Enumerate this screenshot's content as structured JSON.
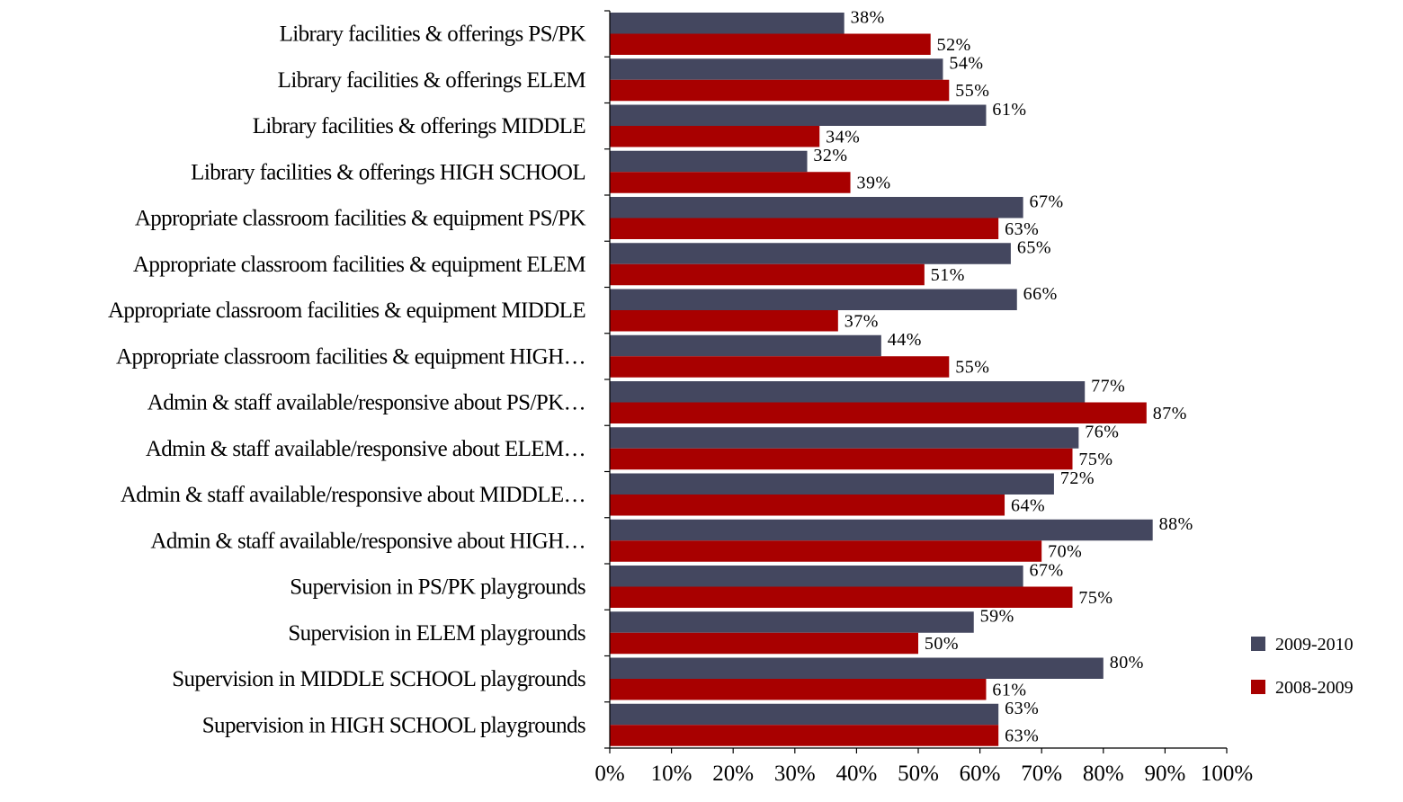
{
  "chart_data": {
    "type": "bar",
    "orientation": "horizontal",
    "categories": [
      "Library facilities & offerings PS/PK",
      "Library facilities & offerings ELEM",
      "Library facilities & offerings MIDDLE",
      "Library facilities & offerings HIGH SCHOOL",
      "Appropriate classroom facilities & equipment PS/PK",
      "Appropriate classroom facilities & equipment ELEM",
      "Appropriate classroom facilities & equipment MIDDLE",
      "Appropriate classroom facilities & equipment HIGH…",
      "Admin & staff available/responsive about PS/PK…",
      "Admin & staff available/responsive about ELEM…",
      "Admin & staff available/responsive about MIDDLE…",
      "Admin & staff available/responsive about HIGH…",
      "Supervision in PS/PK playgrounds",
      "Supervision in ELEM playgrounds",
      "Supervision in MIDDLE SCHOOL playgrounds",
      "Supervision in HIGH SCHOOL playgrounds"
    ],
    "series": [
      {
        "name": "2009-2010",
        "color": "#44475f",
        "values": [
          38,
          54,
          61,
          32,
          67,
          65,
          66,
          44,
          77,
          76,
          72,
          88,
          67,
          59,
          80,
          63
        ],
        "labels": [
          "38%",
          "54%",
          "61%",
          "32%",
          "67%",
          "65%",
          "66%",
          "44%",
          "77%",
          "76%",
          "72%",
          "88%",
          "67%",
          "59%",
          "80%",
          "63%"
        ]
      },
      {
        "name": "2008-2009",
        "color": "#a80000",
        "values": [
          52,
          55,
          34,
          39,
          63,
          51,
          37,
          55,
          87,
          75,
          64,
          70,
          75,
          50,
          61,
          63
        ],
        "labels": [
          "52%",
          "55%",
          "34%",
          "39%",
          "63%",
          "51%",
          "37%",
          "55%",
          "87%",
          "75%",
          "64%",
          "70%",
          "75%",
          "50%",
          "61%",
          "63%"
        ]
      }
    ],
    "xlim": [
      0,
      100
    ],
    "xticks": [
      0,
      10,
      20,
      30,
      40,
      50,
      60,
      70,
      80,
      90,
      100
    ],
    "xtick_labels": [
      "0%",
      "10%",
      "20%",
      "30%",
      "40%",
      "50%",
      "60%",
      "70%",
      "80%",
      "90%",
      "100%"
    ],
    "title": "",
    "xlabel": "",
    "ylabel": "",
    "grid": false,
    "legend_position": "right"
  }
}
